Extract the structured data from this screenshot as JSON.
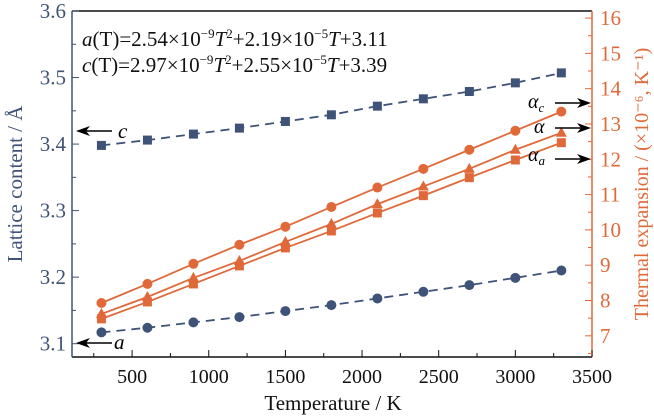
{
  "chart_data": {
    "type": "line",
    "xlabel": "Temperature / K",
    "ylabel_left": "Lattice content / Å",
    "ylabel_right": "Thermal expansion / (×10⁻⁶, K⁻¹)",
    "xlim": [
      108,
      3500
    ],
    "ylim_left": [
      3.08,
      3.6
    ],
    "ylim_right": [
      6.4,
      16.2
    ],
    "x_ticks": [
      500,
      1000,
      1500,
      2000,
      2500,
      3000,
      3500
    ],
    "y_ticks_left": [
      "3.1",
      "3.2",
      "3.3",
      "3.4",
      "3.5",
      "3.6"
    ],
    "y_ticks_right": [
      "7",
      "8",
      "9",
      "10",
      "11",
      "12",
      "13",
      "14",
      "15",
      "16"
    ],
    "x": [
      300,
      600,
      900,
      1200,
      1500,
      1800,
      2100,
      2400,
      2700,
      3000,
      3300
    ],
    "series": [
      {
        "name": "c",
        "axis": "left",
        "marker": "square",
        "dash": true,
        "color": "#3f5277",
        "values": [
          3.398,
          3.406,
          3.415,
          3.424,
          3.434,
          3.444,
          3.457,
          3.468,
          3.479,
          3.492,
          3.507
        ]
      },
      {
        "name": "a",
        "axis": "left",
        "marker": "circle",
        "dash": true,
        "color": "#3f5277",
        "values": [
          3.117,
          3.124,
          3.132,
          3.14,
          3.149,
          3.158,
          3.168,
          3.178,
          3.188,
          3.199,
          3.21
        ]
      },
      {
        "name": "αc",
        "axis": "right",
        "marker": "circle",
        "dash": false,
        "color": "#e0693a",
        "values": [
          7.93,
          8.47,
          9.04,
          9.58,
          10.09,
          10.65,
          11.2,
          11.73,
          12.27,
          12.81,
          13.35
        ]
      },
      {
        "name": "α",
        "axis": "right",
        "marker": "triangle",
        "dash": false,
        "color": "#e0693a",
        "values": [
          7.62,
          8.1,
          8.64,
          9.12,
          9.66,
          10.17,
          10.73,
          11.23,
          11.73,
          12.27,
          12.75
        ]
      },
      {
        "name": "αa",
        "axis": "right",
        "marker": "square",
        "dash": false,
        "color": "#e0693a",
        "values": [
          7.48,
          7.96,
          8.47,
          8.98,
          9.49,
          9.97,
          10.48,
          10.97,
          11.48,
          11.98,
          12.47
        ]
      }
    ],
    "annotations": {
      "eq_a": {
        "lhs": "a",
        "rest": "(T)=2.54×10",
        "exp1": "−9",
        "t2": "T",
        "sq": "2",
        "mid": "+2.19×10",
        "exp2": "−5",
        "t1": "T",
        "end": "+3.11"
      },
      "eq_c": {
        "lhs": "c",
        "rest": "(T)=2.97×10",
        "exp1": "−9",
        "t2": "T",
        "sq": "2",
        "mid": "+2.55×10",
        "exp2": "−5",
        "t1": "T",
        "end": "+3.39"
      },
      "arrow_c": "c",
      "arrow_a": "a",
      "arrow_alpha_c": "α",
      "arrow_alpha_c_sub": "c",
      "arrow_alpha": "α",
      "arrow_alpha_a": "α",
      "arrow_alpha_a_sub": "a"
    }
  }
}
